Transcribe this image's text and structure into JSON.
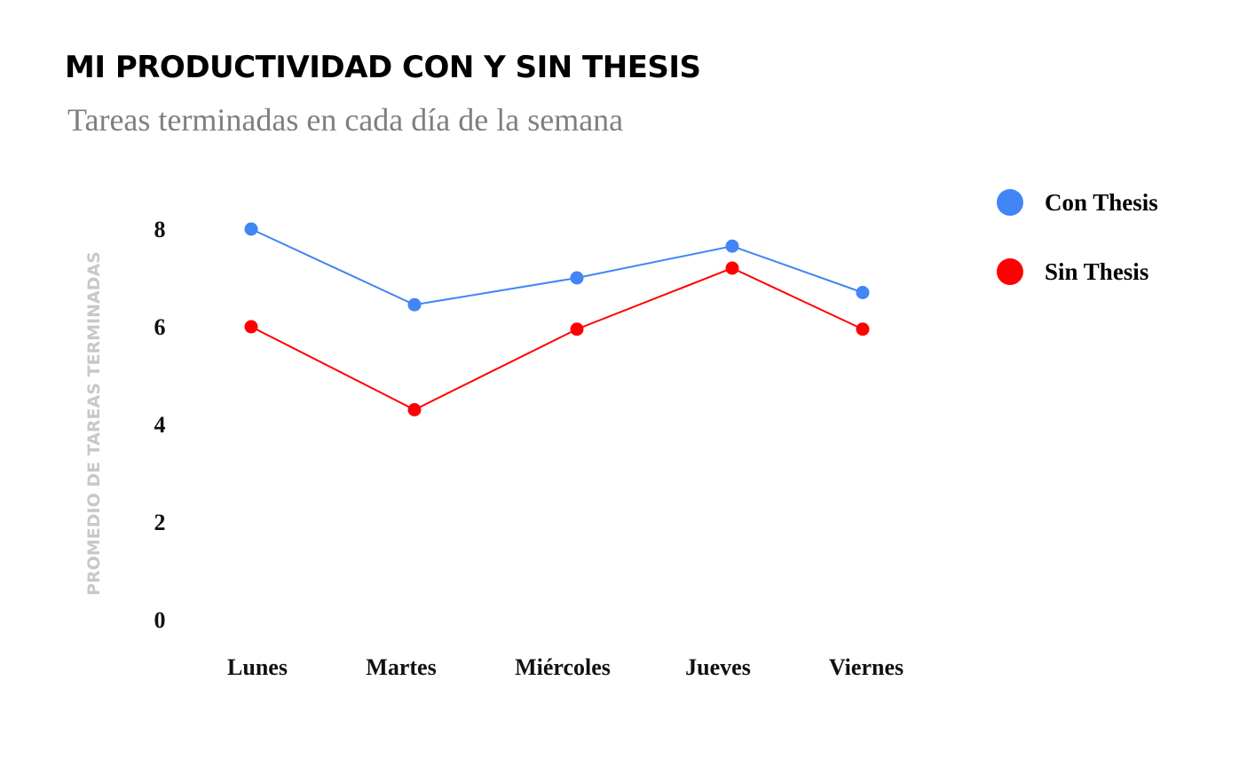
{
  "title": "MI PRODUCTIVIDAD CON Y SIN THESIS",
  "subtitle": "Tareas terminadas en cada día de la semana",
  "chart_data": {
    "type": "line",
    "title": "MI PRODUCTIVIDAD CON Y SIN THESIS",
    "subtitle": "Tareas terminadas en cada día de la semana",
    "xlabel": "",
    "ylabel": "PROMEDIO DE TAREAS TERMINADAS",
    "categories": [
      "Lunes",
      "Martes",
      "Miércoles",
      "Jueves",
      "Viernes"
    ],
    "yticks": [
      0,
      2,
      4,
      6,
      8
    ],
    "ylim": [
      0,
      8
    ],
    "grid": false,
    "legend": "top-right",
    "series": [
      {
        "name": "Con Thesis",
        "color": "#4285f4",
        "values": [
          8.0,
          6.45,
          7.0,
          7.65,
          6.7
        ]
      },
      {
        "name": "Sin Thesis",
        "color": "#ff0000",
        "values": [
          6.0,
          4.3,
          5.95,
          7.2,
          5.95
        ]
      }
    ]
  }
}
